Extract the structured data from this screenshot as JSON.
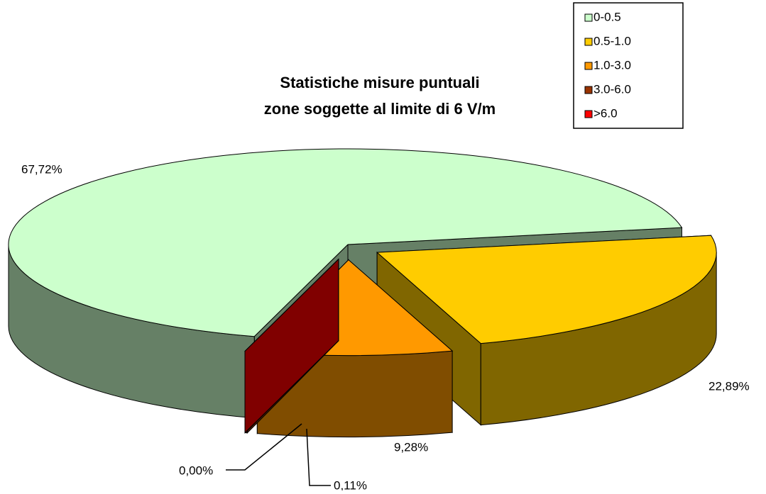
{
  "chart_data": {
    "type": "pie3d",
    "title": "Statistiche misure puntuali",
    "subtitle": "zone soggette al limite di 6 V/m",
    "categories": [
      "0-0.5",
      "0.5-1.0",
      "1.0-3.0",
      "3.0-6.0",
      ">6.0"
    ],
    "values": [
      67.72,
      22.89,
      9.28,
      0.11,
      0.0
    ],
    "value_labels": [
      "67,72%",
      "22,89%",
      "9,28%",
      "0,11%",
      "0,00%"
    ],
    "colors": [
      "#ccffcc",
      "#ffcc00",
      "#ff9900",
      "#993300",
      "#ff0000"
    ],
    "legend": "top-right"
  }
}
